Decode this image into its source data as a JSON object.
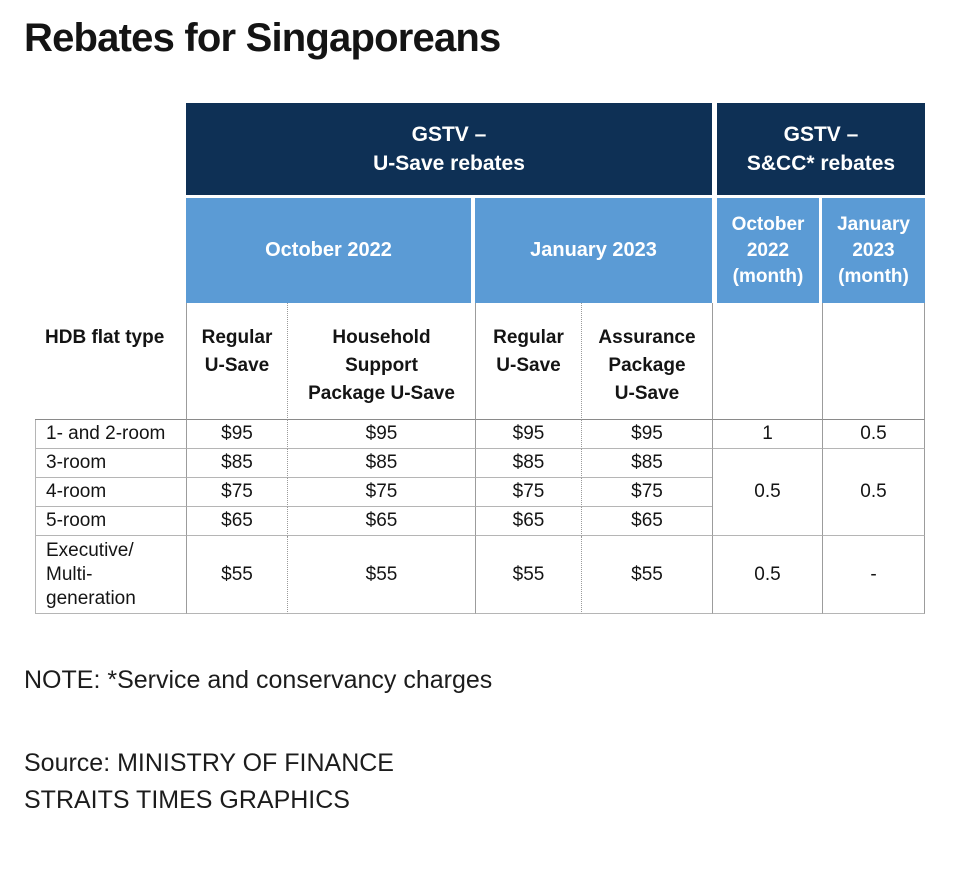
{
  "title": "Rebates for Singaporeans",
  "colors": {
    "navy": "#0e3055",
    "blue": "#5b9bd5"
  },
  "table": {
    "groups": {
      "usave": "GSTV –\nU-Save rebates",
      "sncc": "GSTV –\nS&CC* rebates"
    },
    "periods": {
      "usave_oct": "October 2022",
      "usave_jan": "January 2023",
      "sncc_oct": "October\n2022\n(month)",
      "sncc_jan": "January\n2023\n(month)"
    },
    "columns": {
      "flat_type": "HDB flat type",
      "regular_oct": "Regular\nU-Save",
      "household": "Household\nSupport\nPackage U-Save",
      "regular_jan": "Regular\nU-Save",
      "assurance": "Assurance\nPackage\nU-Save"
    },
    "rows": [
      {
        "label": "1- and 2-room",
        "c1": "$95",
        "c2": "$95",
        "c3": "$95",
        "c4": "$95",
        "sncc_oct": "1",
        "sncc_jan": "0.5"
      },
      {
        "label": "3-room",
        "c1": "$85",
        "c2": "$85",
        "c3": "$85",
        "c4": "$85"
      },
      {
        "label": "4-room",
        "c1": "$75",
        "c2": "$75",
        "c3": "$75",
        "c4": "$75"
      },
      {
        "label": "5-room",
        "c1": "$65",
        "c2": "$65",
        "c3": "$65",
        "c4": "$65"
      },
      {
        "label": "Executive/\nMulti-\ngeneration",
        "c1": "$55",
        "c2": "$55",
        "c3": "$55",
        "c4": "$55",
        "sncc_oct": "0.5",
        "sncc_jan": "-"
      }
    ],
    "merged": {
      "sncc_oct": "0.5",
      "sncc_jan": "0.5"
    }
  },
  "note": "NOTE: *Service and conservancy charges",
  "source": {
    "line1": "Source: MINISTRY OF FINANCE",
    "line2": "STRAITS TIMES GRAPHICS"
  },
  "chart_data": {
    "type": "table",
    "title": "Rebates for Singaporeans",
    "columns": [
      "HDB flat type",
      "GSTV U-Save rebates – October 2022 – Regular U-Save",
      "GSTV U-Save rebates – October 2022 – Household Support Package U-Save",
      "GSTV U-Save rebates – January 2023 – Regular U-Save",
      "GSTV U-Save rebates – January 2023 – Assurance Package U-Save",
      "GSTV S&CC* rebates – October 2022 (month)",
      "GSTV S&CC* rebates – January 2023 (month)"
    ],
    "rows": [
      [
        "1- and 2-room",
        "$95",
        "$95",
        "$95",
        "$95",
        "1",
        "0.5"
      ],
      [
        "3-room",
        "$85",
        "$85",
        "$85",
        "$85",
        "0.5",
        "0.5"
      ],
      [
        "4-room",
        "$75",
        "$75",
        "$75",
        "$75",
        "0.5",
        "0.5"
      ],
      [
        "5-room",
        "$65",
        "$65",
        "$65",
        "$65",
        "0.5",
        "0.5"
      ],
      [
        "Executive/Multi-generation",
        "$55",
        "$55",
        "$55",
        "$55",
        "0.5",
        "-"
      ]
    ],
    "notes": [
      "NOTE: *Service and conservancy charges",
      "S&CC rebate of 0.5 month shown merged across 3-room, 4-room and 5-room rows for both October 2022 and January 2023",
      "Source: MINISTRY OF FINANCE",
      "STRAITS TIMES GRAPHICS"
    ]
  }
}
